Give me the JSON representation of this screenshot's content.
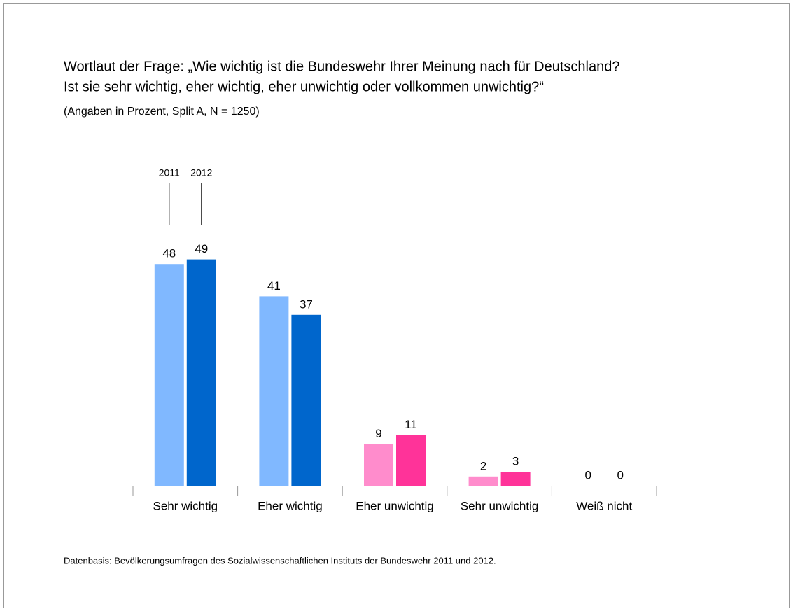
{
  "chart_data": {
    "type": "bar",
    "title": [
      "Wortlaut der Frage: „Wie wichtig ist die Bundeswehr Ihrer Meinung nach für Deutschland?",
      "Ist sie sehr wichtig, eher wichtig, eher unwichtig oder vollkommen unwichtig?“"
    ],
    "subtitle": "(Angaben in Prozent, Split A, N = 1250)",
    "categories": [
      "Sehr wichtig",
      "Eher wichtig",
      "Eher unwichtig",
      "Sehr unwichtig",
      "Weiß nicht"
    ],
    "series": [
      {
        "name": "2011",
        "colors": [
          "#80b8ff",
          "#80b8ff",
          "#ff8ccc",
          "#ff8ccc",
          "#ff8ccc"
        ],
        "values": [
          48,
          41,
          9,
          2,
          0
        ]
      },
      {
        "name": "2012",
        "colors": [
          "#0066cc",
          "#0066cc",
          "#ff3399",
          "#ff3399",
          "#ff3399"
        ],
        "values": [
          49,
          37,
          11,
          3,
          0
        ]
      }
    ],
    "ylim": [
      0,
      50
    ],
    "note": "Datenbasis: Bevölkerungsumfragen des Sozialwissenschaftlichen Instituts der Bundeswehr 2011 und 2012."
  }
}
